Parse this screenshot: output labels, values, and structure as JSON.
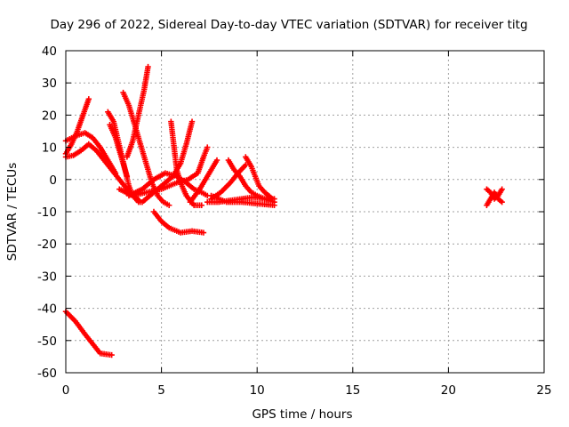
{
  "chart_data": {
    "type": "scatter",
    "title": "Day 296 of 2022, Sidereal Day-to-day VTEC variation (SDTVAR) for receiver titg",
    "xlabel": "GPS time / hours",
    "ylabel": "SDTVAR / TECUs",
    "xlim": [
      0,
      25
    ],
    "ylim": [
      -60,
      40
    ],
    "xticks": [
      "0",
      "5",
      "10",
      "15",
      "20",
      "25"
    ],
    "yticks": [
      "40",
      "30",
      "20",
      "10",
      "0",
      "-10",
      "-20",
      "-30",
      "-40",
      "-50",
      "-60"
    ],
    "grid": true,
    "marker": "plus",
    "color": "#ff0000",
    "series": [
      {
        "points": [
          [
            0.0,
            8
          ],
          [
            0.3,
            11
          ],
          [
            0.6,
            15
          ],
          [
            0.9,
            20
          ],
          [
            1.2,
            25
          ]
        ]
      },
      {
        "points": [
          [
            0.0,
            7
          ],
          [
            0.4,
            7.5
          ],
          [
            0.8,
            9
          ],
          [
            1.2,
            11
          ],
          [
            1.6,
            9
          ],
          [
            2.0,
            6
          ],
          [
            2.4,
            3
          ],
          [
            2.8,
            0
          ],
          [
            3.2,
            -3
          ],
          [
            3.6,
            -5
          ],
          [
            3.9,
            -7
          ]
        ]
      },
      {
        "points": [
          [
            0.0,
            12
          ],
          [
            0.5,
            13.5
          ],
          [
            1.0,
            14.5
          ],
          [
            1.4,
            13
          ],
          [
            1.8,
            10
          ],
          [
            2.2,
            6
          ],
          [
            2.6,
            2
          ]
        ]
      },
      {
        "points": [
          [
            2.2,
            21
          ],
          [
            2.5,
            18
          ],
          [
            2.7,
            13
          ],
          [
            2.9,
            8
          ],
          [
            3.1,
            3
          ],
          [
            3.3,
            -2
          ],
          [
            3.5,
            -5
          ],
          [
            3.8,
            -7
          ]
        ]
      },
      {
        "points": [
          [
            2.3,
            17
          ],
          [
            2.6,
            13
          ],
          [
            2.8,
            9
          ],
          [
            3.0,
            5
          ],
          [
            3.2,
            1
          ]
        ]
      },
      {
        "points": [
          [
            3.0,
            27
          ],
          [
            3.3,
            23
          ],
          [
            3.6,
            17
          ],
          [
            3.9,
            11
          ],
          [
            4.2,
            5
          ],
          [
            4.5,
            -1
          ],
          [
            4.8,
            -5
          ],
          [
            5.1,
            -7
          ],
          [
            5.4,
            -8
          ]
        ]
      },
      {
        "points": [
          [
            3.2,
            7
          ],
          [
            3.5,
            12
          ],
          [
            3.8,
            20
          ],
          [
            4.1,
            28
          ],
          [
            4.3,
            35
          ]
        ]
      },
      {
        "points": [
          [
            2.8,
            -3
          ],
          [
            3.5,
            -5
          ],
          [
            4.2,
            -4
          ],
          [
            5.0,
            -3
          ],
          [
            5.8,
            -1
          ],
          [
            6.4,
            0
          ],
          [
            6.9,
            2
          ],
          [
            7.2,
            7
          ],
          [
            7.4,
            10
          ]
        ]
      },
      {
        "points": [
          [
            3.3,
            -5
          ],
          [
            4.0,
            -3
          ],
          [
            4.6,
            0
          ],
          [
            5.2,
            2
          ],
          [
            5.8,
            1
          ],
          [
            6.3,
            -1
          ],
          [
            6.7,
            -3
          ],
          [
            7.1,
            -4
          ],
          [
            7.4,
            -5
          ]
        ]
      },
      {
        "points": [
          [
            4.0,
            -7
          ],
          [
            4.6,
            -4
          ],
          [
            5.2,
            -1
          ],
          [
            5.6,
            1
          ],
          [
            6.0,
            5
          ],
          [
            6.3,
            11
          ],
          [
            6.6,
            18
          ]
        ]
      },
      {
        "points": [
          [
            5.5,
            18
          ],
          [
            5.6,
            13
          ],
          [
            5.7,
            8
          ],
          [
            5.8,
            3
          ],
          [
            6.0,
            -1
          ],
          [
            6.3,
            -5
          ],
          [
            6.7,
            -8
          ],
          [
            7.1,
            -8
          ]
        ]
      },
      {
        "points": [
          [
            4.6,
            -10
          ],
          [
            5.0,
            -13
          ],
          [
            5.4,
            -15
          ],
          [
            6.0,
            -16.5
          ],
          [
            6.6,
            -16
          ],
          [
            7.2,
            -16.5
          ]
        ]
      },
      {
        "points": [
          [
            6.5,
            -7
          ],
          [
            7.0,
            -3
          ],
          [
            7.3,
            0
          ],
          [
            7.6,
            3
          ],
          [
            7.9,
            6
          ]
        ]
      },
      {
        "points": [
          [
            7.4,
            -7
          ],
          [
            8.0,
            -7
          ],
          [
            8.6,
            -6.5
          ],
          [
            9.2,
            -6
          ],
          [
            9.8,
            -5.5
          ],
          [
            10.4,
            -6
          ],
          [
            10.9,
            -7
          ]
        ]
      },
      {
        "points": [
          [
            7.6,
            -6
          ],
          [
            8.1,
            -4
          ],
          [
            8.6,
            -1
          ],
          [
            9.0,
            2
          ],
          [
            9.4,
            4.5
          ]
        ]
      },
      {
        "points": [
          [
            8.5,
            6
          ],
          [
            8.8,
            3
          ],
          [
            9.1,
            1
          ],
          [
            9.4,
            -2
          ],
          [
            9.7,
            -4
          ],
          [
            10.0,
            -5
          ],
          [
            10.4,
            -6
          ],
          [
            10.9,
            -6
          ]
        ]
      },
      {
        "points": [
          [
            9.4,
            7
          ],
          [
            9.7,
            4
          ],
          [
            9.9,
            1
          ],
          [
            10.1,
            -2
          ],
          [
            10.4,
            -4
          ],
          [
            10.8,
            -6
          ]
        ]
      },
      {
        "points": [
          [
            7.6,
            -5
          ],
          [
            8.4,
            -7
          ],
          [
            9.2,
            -7
          ],
          [
            10.0,
            -7.5
          ],
          [
            10.9,
            -8
          ]
        ]
      },
      {
        "points": [
          [
            22.0,
            -3
          ],
          [
            22.2,
            -4
          ],
          [
            22.4,
            -6
          ],
          [
            22.6,
            -5
          ],
          [
            22.8,
            -3
          ]
        ]
      },
      {
        "points": [
          [
            22.0,
            -8
          ],
          [
            22.2,
            -6
          ],
          [
            22.4,
            -4
          ],
          [
            22.6,
            -6
          ],
          [
            22.8,
            -7
          ]
        ]
      },
      {
        "points": [
          [
            0.0,
            -41
          ],
          [
            0.5,
            -44
          ],
          [
            1.0,
            -48
          ],
          [
            1.4,
            -51
          ],
          [
            1.8,
            -54
          ],
          [
            2.4,
            -54.5
          ]
        ]
      }
    ]
  }
}
